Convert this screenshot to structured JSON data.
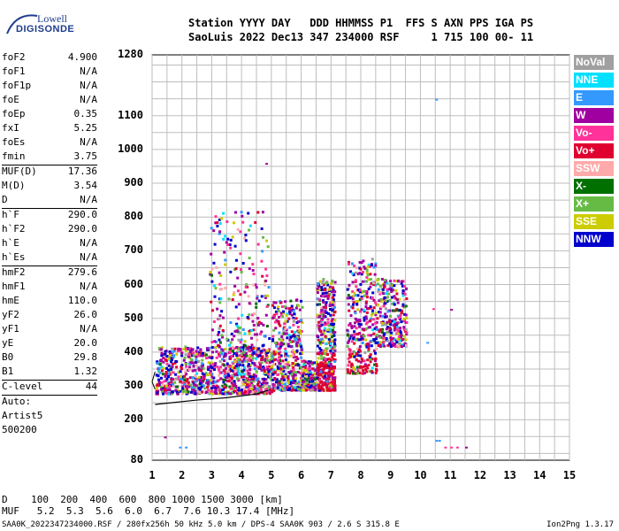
{
  "brand": {
    "line1": "Lowell",
    "line2": "DIGISONDE"
  },
  "header": {
    "line1": "Station YYYY DAY   DDD HHMMSS P1  FFS S AXN PPS IGA PS",
    "line2": "SaoLuis 2022 Dec13 347 234000 RSF     1 715 100 00- 11"
  },
  "scaled_params": [
    {
      "name": "foF2",
      "value": "4.900"
    },
    {
      "name": "foF1",
      "value": "N/A"
    },
    {
      "name": "foF1p",
      "value": "N/A"
    },
    {
      "name": "foE",
      "value": "N/A"
    },
    {
      "name": "foEp",
      "value": "0.35"
    },
    {
      "name": "fxI",
      "value": "5.25"
    },
    {
      "name": "foEs",
      "value": "N/A"
    },
    {
      "name": "fmin",
      "value": "3.75"
    }
  ],
  "muf_params": [
    {
      "name": "MUF(D)",
      "value": "17.36"
    },
    {
      "name": "M(D)",
      "value": "3.54"
    },
    {
      "name": "D",
      "value": "N/A"
    }
  ],
  "height_params": [
    {
      "name": "h`F",
      "value": "290.0"
    },
    {
      "name": "h`F2",
      "value": "290.0"
    },
    {
      "name": "h`E",
      "value": "N/A"
    },
    {
      "name": "h`Es",
      "value": "N/A"
    }
  ],
  "profile_params": [
    {
      "name": "hmF2",
      "value": "279.6"
    },
    {
      "name": "hmF1",
      "value": "N/A"
    },
    {
      "name": "hmE",
      "value": "110.0"
    },
    {
      "name": "yF2",
      "value": "26.0"
    },
    {
      "name": "yF1",
      "value": "N/A"
    },
    {
      "name": "yE",
      "value": "20.0"
    },
    {
      "name": "B0",
      "value": "29.8"
    },
    {
      "name": "B1",
      "value": "1.32"
    }
  ],
  "clevel": {
    "name": "C-level",
    "value": "44"
  },
  "auto": {
    "line1": "Auto:",
    "line2": "Artist5",
    "line3": "500200"
  },
  "legend": [
    {
      "label": "NoVal",
      "color": "#a0a0a0"
    },
    {
      "label": "NNE",
      "color": "#00e0ff"
    },
    {
      "label": "E",
      "color": "#3399ff"
    },
    {
      "label": "W",
      "color": "#a000a0"
    },
    {
      "label": "Vo-",
      "color": "#ff3399"
    },
    {
      "label": "Vo+",
      "color": "#e00030"
    },
    {
      "label": "SSW",
      "color": "#ffaaaa"
    },
    {
      "label": "X-",
      "color": "#007000"
    },
    {
      "label": "X+",
      "color": "#66bb44"
    },
    {
      "label": "SSE",
      "color": "#cccc00"
    },
    {
      "label": "NNW",
      "color": "#0000cc"
    }
  ],
  "footer": {
    "d_row": "D    100  200  400  600  800 1000 1500 3000 [km]",
    "muf_row": "MUF   5.2  5.3  5.6  6.0  6.7  7.6 10.3 17.4 [MHz]",
    "file_info": "SAA0K_2022347234000.RSF / 280fx256h 50 kHz 5.0 km / DPS-4 SAA0K 903 / 2.6 S 315.8 E",
    "version": "Ion2Png 1.3.17"
  },
  "chart_data": {
    "type": "scatter",
    "xlim": [
      1,
      15
    ],
    "ylim": [
      80,
      1280
    ],
    "x_ticks": [
      "1",
      "2",
      "3",
      "4",
      "5",
      "6",
      "7",
      "8",
      "9",
      "10",
      "11",
      "12",
      "13",
      "14",
      "15"
    ],
    "y_ticks": [
      "1280",
      "1100",
      "1000",
      "900",
      "800",
      "700",
      "600",
      "500",
      "400",
      "300",
      "200",
      "80"
    ],
    "grid": true,
    "x_unit": "MHz",
    "y_unit": "km",
    "trace_clusters": [
      {
        "fmin": 1.1,
        "fmax": 5.0,
        "hmin": 280,
        "hmax": 420,
        "n": 950
      },
      {
        "fmin": 2.9,
        "fmax": 4.9,
        "hmin": 400,
        "hmax": 820,
        "n": 230
      },
      {
        "fmin": 5.0,
        "fmax": 6.0,
        "hmin": 290,
        "hmax": 560,
        "n": 380
      },
      {
        "fmin": 6.0,
        "fmax": 6.5,
        "hmin": 290,
        "hmax": 380,
        "n": 140
      },
      {
        "fmin": 6.5,
        "fmax": 7.1,
        "hmin": 290,
        "hmax": 620,
        "n": 420
      },
      {
        "fmin": 7.5,
        "fmax": 8.5,
        "hmin": 340,
        "hmax": 680,
        "n": 320
      },
      {
        "fmin": 8.5,
        "fmax": 9.5,
        "hmin": 420,
        "hmax": 620,
        "n": 260
      }
    ],
    "profile_line": [
      [
        1.1,
        245
      ],
      [
        2.5,
        258
      ],
      [
        3.5,
        265
      ],
      [
        4.5,
        276
      ],
      [
        4.9,
        287
      ]
    ],
    "leading_edge": [
      [
        1.1,
        342
      ],
      [
        1.0,
        312
      ],
      [
        1.1,
        290
      ]
    ],
    "isolated_points": [
      {
        "x": 10.5,
        "y": 1150,
        "c": "#3399ff"
      },
      {
        "x": 10.5,
        "y": 140,
        "c": "#3399ff"
      },
      {
        "x": 10.6,
        "y": 140,
        "c": "#3399ff"
      },
      {
        "x": 10.8,
        "y": 120,
        "c": "#ff3399"
      },
      {
        "x": 11.0,
        "y": 120,
        "c": "#ff3399"
      },
      {
        "x": 11.2,
        "y": 120,
        "c": "#ff3399"
      },
      {
        "x": 11.5,
        "y": 120,
        "c": "#a000a0"
      },
      {
        "x": 10.4,
        "y": 530,
        "c": "#ff3399"
      },
      {
        "x": 11.0,
        "y": 528,
        "c": "#a000a0"
      },
      {
        "x": 10.2,
        "y": 430,
        "c": "#3399ff"
      },
      {
        "x": 1.9,
        "y": 120,
        "c": "#3399ff"
      },
      {
        "x": 2.1,
        "y": 120,
        "c": "#3399ff"
      },
      {
        "x": 1.4,
        "y": 150,
        "c": "#a000a0"
      },
      {
        "x": 4.8,
        "y": 960,
        "c": "#a000a0"
      }
    ]
  }
}
